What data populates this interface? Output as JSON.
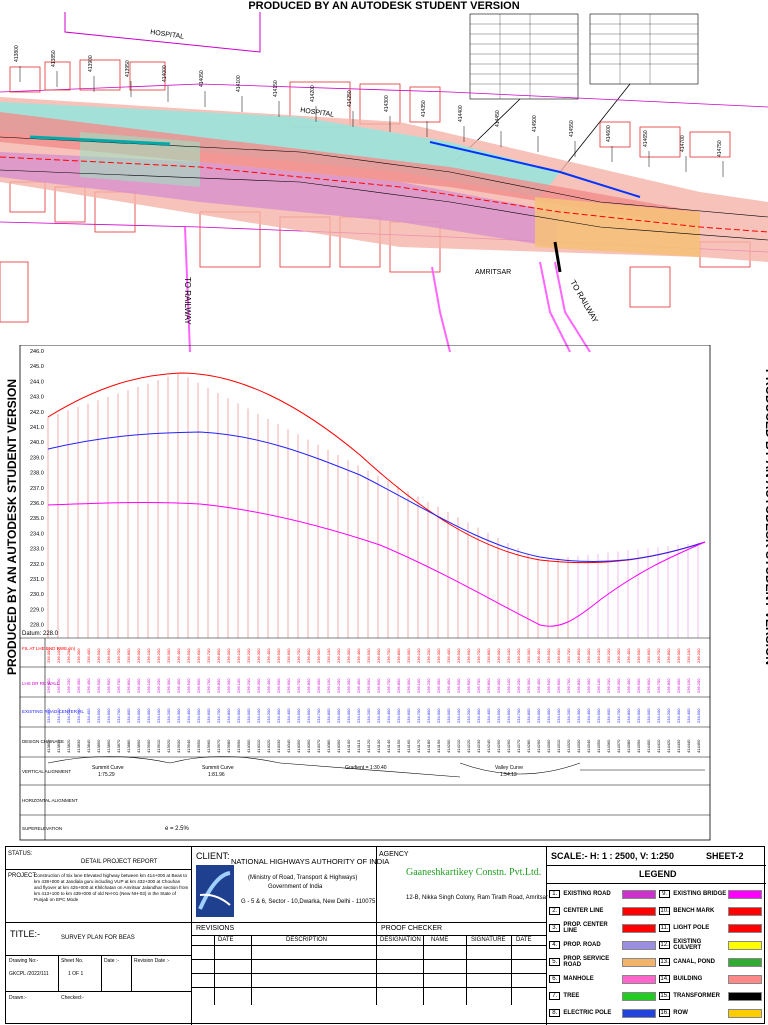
{
  "watermark": "PRODUCED BY AN AUTODESK STUDENT VERSION",
  "plan": {
    "labels": {
      "hospital1": "HOSPITAL",
      "hospital2": "HOSPITAL",
      "amritsar": "AMRITSAR",
      "to_railway": "TO RAILWAY",
      "to_railway2": "TO RAILWAY"
    },
    "chainages_top": [
      "413800",
      "413850",
      "413900",
      "413950",
      "414000",
      "414050",
      "414100",
      "414150",
      "414200",
      "414250",
      "414300",
      "414350",
      "414400",
      "414450",
      "414500",
      "414550",
      "414600",
      "414650",
      "414700",
      "414750"
    ]
  },
  "profile": {
    "y_ticks": [
      "246.0",
      "245.0",
      "244.0",
      "243.0",
      "242.0",
      "241.0",
      "240.0",
      "239.0",
      "238.0",
      "237.0",
      "236.0",
      "235.0",
      "234.0",
      "233.0",
      "232.0",
      "231.0",
      "230.0",
      "229.0",
      "228.0"
    ],
    "datum": "Datum: 228.0",
    "rows": {
      "fil_at_lhe": "FIL AT LHE END RWE (m)",
      "lhs_rl": "LHS DR RE WALL",
      "existing_road": "EXISTING ROAD CENTER RL",
      "design_chainage": "DESIGN CHAINAGE",
      "vertical_alignment": "VERTICAL ALIGNMENT",
      "horizontal_alignment": "HORIZONTAL ALIGNMENT",
      "superelevation": "SUPERELEVATION"
    },
    "curves": {
      "summit1": "Summit Curve\n1:75.29",
      "summit1_a": "Summit Curve",
      "summit1_b": "1:75.29",
      "summit2_a": "Summit Curve",
      "summit2_b": "1:81.96",
      "gradient": "Gradient = 1:30.40",
      "valley_a": "Valley Curve",
      "valley_b": "1:54.13"
    },
    "superelevation_value": "e = 2.5%"
  },
  "title_block": {
    "status_label": "STATUS:",
    "status_value": "DETAIL PROJECT REPORT",
    "project_label": "PROJECT:",
    "project_value": "Construction of Six lane Elevated highway between km 414+000 at Beas to km 438+000 at Jandiala guru including VUP at km 432+300 at Chouhan and flyover at km 425+000 at Khilchatan on Amritsar Jalandhar section from km 413+100 to km 439+000 of old NH-01 (New NH-03) in the State of Punjab on EPC Mode",
    "client_label": "CLIENT:",
    "client_name": "NATIONAL HIGHWAYS AUTHORITY OF INDIA",
    "client_ministry": "(Ministry of Road, Transport & Highways)",
    "client_gov": "Government of India",
    "client_addr": "G - 5 & 6, Sector - 10,Dwarka, New Delhi - 110075",
    "agency_label": "AGENCY",
    "agency_name": "Gaaneshkartikey Constn. Pvt.Ltd.",
    "agency_addr": "12-B, Nikka Singh Colony, Ram Tirath Road, Amritsar",
    "scale": "SCALE:- H: 1 : 2500, V: 1:250",
    "sheet": "SHEET-2",
    "legend_title": "LEGEND",
    "title_label": "TITLE:-",
    "title_value": "SURVEY PLAN FOR BEAS",
    "revisions_label": "REVISIONS",
    "proof_label": "PROOF CHECKER",
    "rev_cols": [
      "DATE",
      "DESCRIPTION",
      "DESIGNATION",
      "NAME",
      "SIGNATURE",
      "DATE"
    ],
    "drawing_no_label": "Drawing No:-",
    "drawing_no": "GKCPL /2022/111",
    "sheet_no_label": "Sheet No.",
    "sheet_no": "1 OF 1",
    "date_label": "Date :-",
    "revision_date_label": "Revision Date :-",
    "drawn_label": "Drawn:-",
    "checked_label": "Checked:-"
  },
  "legend": [
    {
      "n": "1.",
      "label": "EXISTING ROAD",
      "swatch": "#cc33cc",
      "n2": "9.",
      "label2": "EXISTING BRIDGE",
      "swatch2": "#ff00ff"
    },
    {
      "n": "2.",
      "label": "CENTER LINE",
      "swatch": "#ff0000",
      "n2": "10.",
      "label2": "BENCH MARK",
      "swatch2": "#ff0000"
    },
    {
      "n": "3.",
      "label": "PROP. CENTER LINE",
      "swatch": "#ff0000",
      "n2": "11.",
      "label2": "LIGHT POLE",
      "swatch2": "#ff0000"
    },
    {
      "n": "4.",
      "label": "PROP. ROAD",
      "swatch": "#9a8fe0",
      "n2": "12.",
      "label2": "EXISTING CULVERT",
      "swatch2": "#ffff00"
    },
    {
      "n": "5.",
      "label": "PROP. SERVICE ROAD",
      "swatch": "#f2b36b",
      "n2": "13.",
      "label2": "CANAL, POND",
      "swatch2": "#33aa33"
    },
    {
      "n": "6.",
      "label": "MANHOLE",
      "swatch": "#ff66cc",
      "n2": "14.",
      "label2": "BUILDING",
      "swatch2": "#ff8888"
    },
    {
      "n": "7.",
      "label": "TREE",
      "swatch": "#22cc22",
      "n2": "15.",
      "label2": "TRANSFORMER",
      "swatch2": "#000000"
    },
    {
      "n": "8.",
      "label": "ELECTRIC POLE",
      "swatch": "#2244dd",
      "n2": "16.",
      "label2": "ROW",
      "swatch2": "#ffcc00"
    }
  ]
}
